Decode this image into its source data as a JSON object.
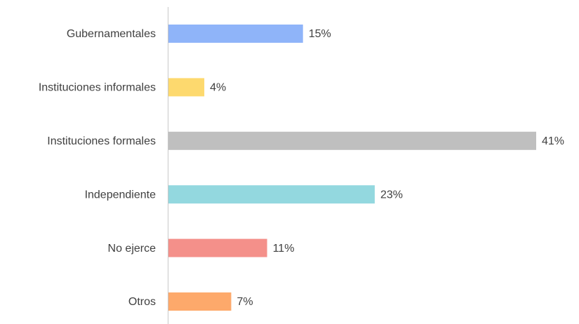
{
  "chart_data": {
    "type": "bar",
    "orientation": "horizontal",
    "categories": [
      "Gubernamentales",
      "Instituciones informales",
      "Instituciones formales",
      "Independiente",
      "No ejerce",
      "Otros"
    ],
    "values": [
      15,
      4,
      41,
      23,
      11,
      7
    ],
    "value_labels": [
      "15%",
      "4%",
      "41%",
      "23%",
      "11%",
      "7%"
    ],
    "colors": [
      "#8fb4f9",
      "#fdd96e",
      "#bfbfbf",
      "#93d8df",
      "#f4908a",
      "#fda96b"
    ]
  }
}
